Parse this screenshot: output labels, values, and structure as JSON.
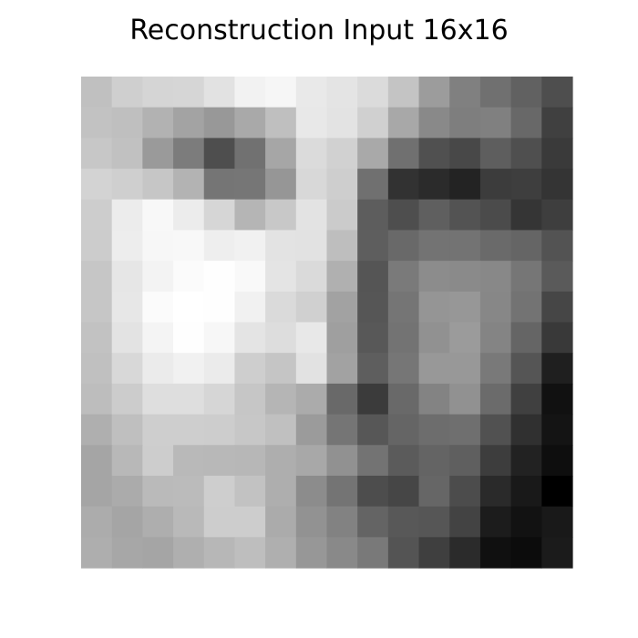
{
  "chart_data": {
    "type": "heatmap",
    "title": "Reconstruction Input 16x16",
    "xlabel": "",
    "ylabel": "",
    "colormap": "gray",
    "value_range": [
      0,
      255
    ],
    "axes_visible": false,
    "grid": false,
    "rows": 16,
    "cols": 16,
    "values": [
      [
        192,
        207,
        213,
        214,
        226,
        242,
        246,
        233,
        228,
        219,
        196,
        156,
        128,
        112,
        97,
        78
      ],
      [
        194,
        191,
        178,
        163,
        152,
        169,
        191,
        232,
        227,
        208,
        168,
        137,
        126,
        128,
        104,
        64
      ],
      [
        199,
        193,
        154,
        124,
        78,
        113,
        166,
        219,
        209,
        169,
        112,
        80,
        72,
        94,
        79,
        58
      ],
      [
        211,
        207,
        198,
        179,
        117,
        118,
        150,
        216,
        206,
        112,
        50,
        43,
        35,
        60,
        62,
        52
      ],
      [
        205,
        236,
        248,
        236,
        214,
        181,
        200,
        227,
        203,
        93,
        78,
        95,
        83,
        75,
        53,
        62
      ],
      [
        204,
        237,
        247,
        248,
        238,
        241,
        227,
        226,
        190,
        94,
        105,
        115,
        115,
        106,
        101,
        83
      ],
      [
        198,
        230,
        243,
        251,
        254,
        249,
        228,
        218,
        176,
        85,
        122,
        140,
        138,
        136,
        118,
        90
      ],
      [
        198,
        231,
        251,
        255,
        254,
        241,
        218,
        208,
        162,
        86,
        117,
        149,
        151,
        135,
        115,
        70
      ],
      [
        194,
        227,
        244,
        254,
        247,
        228,
        221,
        232,
        159,
        88,
        115,
        145,
        155,
        132,
        101,
        57
      ],
      [
        192,
        216,
        235,
        241,
        235,
        206,
        197,
        226,
        162,
        94,
        118,
        152,
        152,
        121,
        85,
        31
      ],
      [
        189,
        204,
        222,
        222,
        214,
        198,
        181,
        171,
        105,
        59,
        105,
        131,
        145,
        107,
        64,
        17
      ],
      [
        175,
        191,
        206,
        206,
        205,
        199,
        192,
        155,
        117,
        87,
        101,
        109,
        111,
        81,
        48,
        20
      ],
      [
        165,
        184,
        205,
        185,
        184,
        183,
        174,
        168,
        145,
        115,
        91,
        100,
        95,
        61,
        34,
        14
      ],
      [
        165,
        171,
        186,
        187,
        206,
        194,
        174,
        140,
        116,
        77,
        70,
        102,
        76,
        42,
        25,
        0
      ],
      [
        172,
        165,
        174,
        185,
        205,
        205,
        171,
        146,
        130,
        100,
        88,
        86,
        67,
        28,
        18,
        25
      ],
      [
        174,
        167,
        165,
        175,
        183,
        190,
        175,
        151,
        137,
        121,
        84,
        63,
        43,
        16,
        12,
        27
      ]
    ]
  }
}
